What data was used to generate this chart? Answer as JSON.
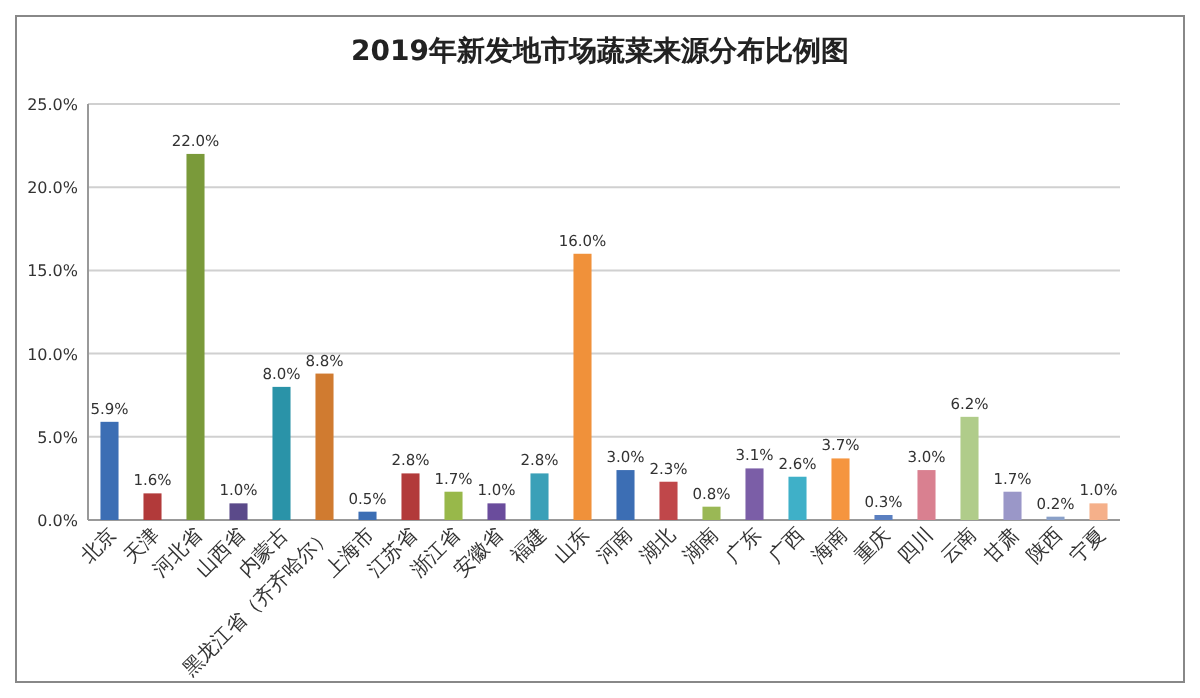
{
  "chart_data": {
    "type": "bar",
    "title": "2019年新发地市场蔬菜来源分布比例图",
    "categories": [
      "北京",
      "天津",
      "河北省",
      "山西省",
      "内蒙古",
      "黑龙江省（齐齐哈尔）",
      "上海市",
      "江苏省",
      "浙江省",
      "安徽省",
      "福建",
      "山东",
      "河南",
      "湖北",
      "湖南",
      "广东",
      "广西",
      "海南",
      "重庆",
      "四川",
      "云南",
      "甘肃",
      "陕西",
      "宁夏"
    ],
    "values": [
      5.9,
      1.6,
      22.0,
      1.0,
      8.0,
      8.8,
      0.5,
      2.8,
      1.7,
      1.0,
      2.8,
      16.0,
      3.0,
      2.3,
      0.8,
      3.1,
      2.6,
      3.7,
      0.3,
      3.0,
      6.2,
      1.7,
      0.2,
      1.0
    ],
    "value_labels": [
      "5.9%",
      "1.6%",
      "22.0%",
      "1.0%",
      "8.0%",
      "8.8%",
      "0.5%",
      "2.8%",
      "1.7%",
      "1.0%",
      "2.8%",
      "16.0%",
      "3.0%",
      "2.3%",
      "0.8%",
      "3.1%",
      "2.6%",
      "3.7%",
      "0.3%",
      "3.0%",
      "6.2%",
      "1.7%",
      "0.2%",
      "1.0%"
    ],
    "colors": [
      "#3c6eb4",
      "#b23a3a",
      "#7a9a3a",
      "#5b4a8a",
      "#2a93a8",
      "#d07b30",
      "#3c6eb4",
      "#b23a3a",
      "#98b84a",
      "#6a4c9c",
      "#3aa0b8",
      "#f0913a",
      "#3c6eb4",
      "#c0474a",
      "#9ab855",
      "#7b5ea7",
      "#3fb0c8",
      "#f5953f",
      "#5a7fc0",
      "#d98090",
      "#b0cc8a",
      "#9a97c8",
      "#8aa0c8",
      "#f5b08a"
    ],
    "ylim": [
      0,
      25
    ],
    "yticks": [
      {
        "value": 0,
        "label": "0.0%"
      },
      {
        "value": 5,
        "label": "5.0%"
      },
      {
        "value": 10,
        "label": "10.0%"
      },
      {
        "value": 15,
        "label": "15.0%"
      },
      {
        "value": 20,
        "label": "20.0%"
      },
      {
        "value": 25,
        "label": "25.0%"
      }
    ],
    "grid": "y"
  }
}
